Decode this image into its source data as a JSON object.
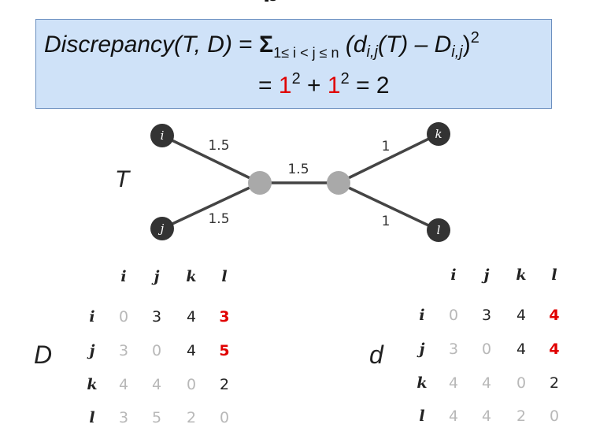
{
  "heading_fragment": "p",
  "formula": {
    "lhs": "Discrepancy(T, D)",
    "equals": "=",
    "sigma": "Σ",
    "sigma_range": "1≤ i < j ≤ n",
    "open": "(d",
    "d_sub": "i,j",
    "middle": "(T) – D",
    "D_sub": "i,j",
    "close": ")",
    "exp": "2",
    "line2_eq": "=",
    "term1": "1",
    "term1_exp": "2",
    "plus": "+",
    "term2": "1",
    "term2_exp": "2",
    "result": "= 2"
  },
  "tree": {
    "name": "T",
    "leaves": [
      {
        "label": "i"
      },
      {
        "label": "j"
      },
      {
        "label": "k"
      },
      {
        "label": "l"
      }
    ],
    "weights": {
      "i": "1.5",
      "j": "1.5",
      "internal": "1.5",
      "k": "1",
      "l": "1"
    },
    "leaf_color": "#333333",
    "internal_color": "#a9a9a9"
  },
  "matrix_D": {
    "name": "D",
    "headers": [
      "i",
      "j",
      "k",
      "l"
    ],
    "rows": [
      {
        "label": "i",
        "values": [
          "0",
          "3",
          "4",
          "3"
        ]
      },
      {
        "label": "j",
        "values": [
          "3",
          "0",
          "4",
          "5"
        ]
      },
      {
        "label": "k",
        "values": [
          "4",
          "4",
          "0",
          "2"
        ]
      },
      {
        "label": "l",
        "values": [
          "3",
          "5",
          "2",
          "0"
        ]
      }
    ]
  },
  "matrix_d": {
    "name": "d",
    "headers": [
      "i",
      "j",
      "k",
      "l"
    ],
    "rows": [
      {
        "label": "i",
        "values": [
          "0",
          "3",
          "4",
          "4"
        ]
      },
      {
        "label": "j",
        "values": [
          "3",
          "0",
          "4",
          "4"
        ]
      },
      {
        "label": "k",
        "values": [
          "4",
          "4",
          "0",
          "2"
        ]
      },
      {
        "label": "l",
        "values": [
          "4",
          "4",
          "2",
          "0"
        ]
      }
    ]
  },
  "highlight_color": "#e00000"
}
